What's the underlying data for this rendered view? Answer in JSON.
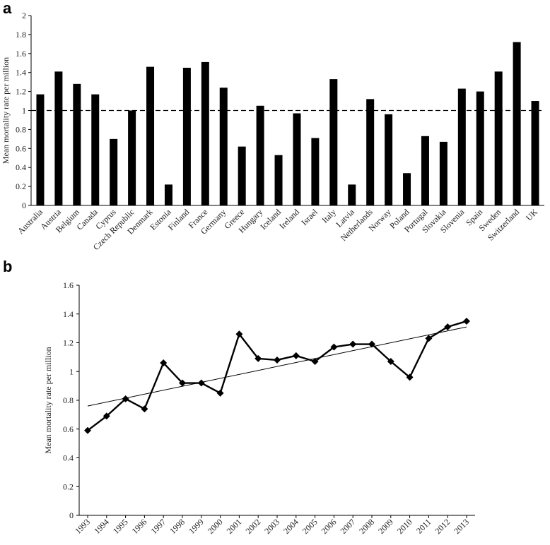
{
  "chart_data": [
    {
      "panel": "a",
      "type": "bar",
      "ylabel": "Mean mortality rate per million",
      "ylim": [
        0,
        2
      ],
      "yticks": [
        "0",
        "0.2",
        "0.4",
        "0.6",
        "0.8",
        "1",
        "1.2",
        "1.4",
        "1.6",
        "1.8",
        "2"
      ],
      "reference_line": 1.0,
      "categories": [
        "Australia",
        "Austria",
        "Belgium",
        "Canada",
        "Cyprus",
        "Czech Republic",
        "Denmark",
        "Estonia",
        "Finland",
        "France",
        "Germany",
        "Greece",
        "Hungary",
        "Iceland",
        "Ireland",
        "Israel",
        "Italy",
        "Latvia",
        "Netherlands",
        "Norway",
        "Poland",
        "Portugal",
        "Slovakia",
        "Slovenia",
        "Spain",
        "Sweden",
        "Switzerland",
        "UK"
      ],
      "values": [
        1.17,
        1.41,
        1.28,
        1.17,
        0.7,
        1.0,
        1.46,
        0.22,
        1.45,
        1.51,
        1.24,
        0.62,
        1.05,
        0.53,
        0.97,
        0.71,
        1.33,
        0.22,
        1.12,
        0.96,
        0.34,
        0.73,
        0.67,
        1.23,
        1.2,
        1.41,
        1.72,
        1.1
      ],
      "color": "#000000"
    },
    {
      "panel": "b",
      "type": "line",
      "ylabel": "Mean mortality rate per million",
      "ylim": [
        0,
        1.6
      ],
      "yticks": [
        "0",
        "0.2",
        "0.4",
        "0.6",
        "0.8",
        "1",
        "1.2",
        "1.4",
        "1.6"
      ],
      "x": [
        "1993",
        "1994",
        "1995",
        "1996",
        "1997",
        "1998",
        "1999",
        "2000",
        "2001",
        "2002",
        "2003",
        "2004",
        "2005",
        "2006",
        "2007",
        "2008",
        "2009",
        "2010",
        "2011",
        "2012",
        "2013"
      ],
      "values": [
        0.59,
        0.69,
        0.81,
        0.74,
        1.06,
        0.92,
        0.92,
        0.85,
        1.26,
        1.09,
        1.08,
        1.11,
        1.07,
        1.17,
        1.19,
        1.19,
        1.07,
        0.96,
        1.23,
        1.31,
        1.35
      ],
      "trendline": [
        0.76,
        1.31
      ],
      "color": "#000000"
    }
  ]
}
